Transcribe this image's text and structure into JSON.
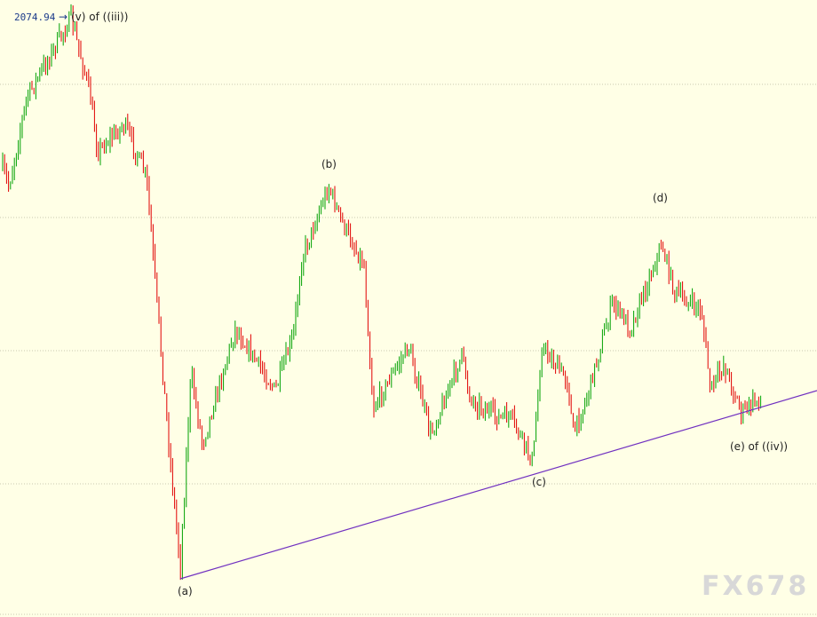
{
  "annotations": {
    "price": "2074.94",
    "arrow": "→",
    "wave_top": "(v) of ((iii))",
    "wave_a": "(a)",
    "wave_b": "(b)",
    "wave_c": "(c)",
    "wave_d": "(d)",
    "wave_e": "(e) of ((iv))"
  },
  "watermark": "FX678"
}
